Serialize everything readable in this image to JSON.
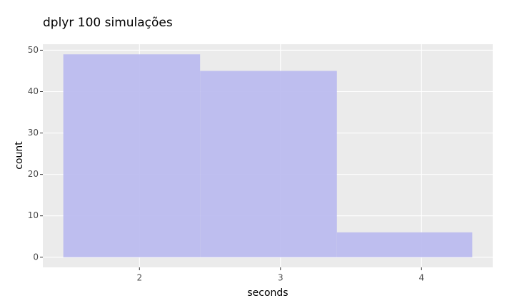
{
  "chart_data": {
    "type": "histogram",
    "title": "dplyr 100 simulações",
    "x_label": "seconds",
    "y_label": "count",
    "bins": [
      1.46,
      2.43,
      3.4,
      4.36
    ],
    "values": [
      49,
      45,
      6
    ],
    "color": "#bcbcef",
    "xlim": [
      1.315,
      4.505
    ],
    "xticks": [
      2,
      3,
      4
    ],
    "ylim": [
      -2.45,
      51.45
    ],
    "yticks": [
      0,
      10,
      20,
      30,
      40,
      50
    ],
    "grid": true
  }
}
